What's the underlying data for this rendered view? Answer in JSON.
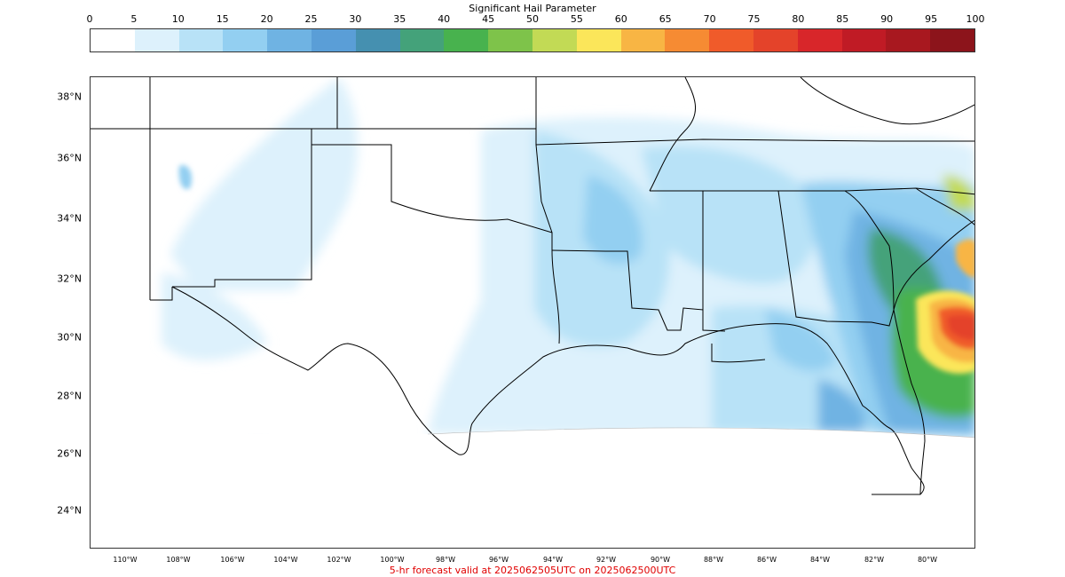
{
  "colorbar": {
    "title": "Significant Hail Parameter",
    "ticks": [
      "0",
      "5",
      "10",
      "15",
      "20",
      "25",
      "30",
      "35",
      "40",
      "45",
      "50",
      "55",
      "60",
      "65",
      "70",
      "75",
      "80",
      "85",
      "90",
      "95",
      "100"
    ],
    "colors": [
      "#ffffff",
      "#ddf1fc",
      "#b8e2f7",
      "#93cff1",
      "#6fb3e3",
      "#5a9ed7",
      "#4590b0",
      "#44a27a",
      "#48b24e",
      "#7ec34a",
      "#c2da55",
      "#fbe65a",
      "#f8b544",
      "#f68b33",
      "#f05b2a",
      "#e4432a",
      "#d8262a",
      "#c01b25",
      "#a8181f",
      "#8c141b"
    ]
  },
  "map": {
    "lat_labels": [
      "38°N",
      "36°N",
      "34°N",
      "32°N",
      "30°N",
      "28°N",
      "26°N",
      "24°N"
    ],
    "lon_labels": [
      "110°W",
      "108°W",
      "106°W",
      "104°W",
      "102°W",
      "100°W",
      "98°W",
      "96°W",
      "94°W",
      "92°W",
      "90°W",
      "88°W",
      "86°W",
      "84°W",
      "82°W",
      "80°W"
    ]
  },
  "footer": {
    "valid_text": "5-hr forecast valid at 2025062505UTC on 2025062500UTC"
  }
}
